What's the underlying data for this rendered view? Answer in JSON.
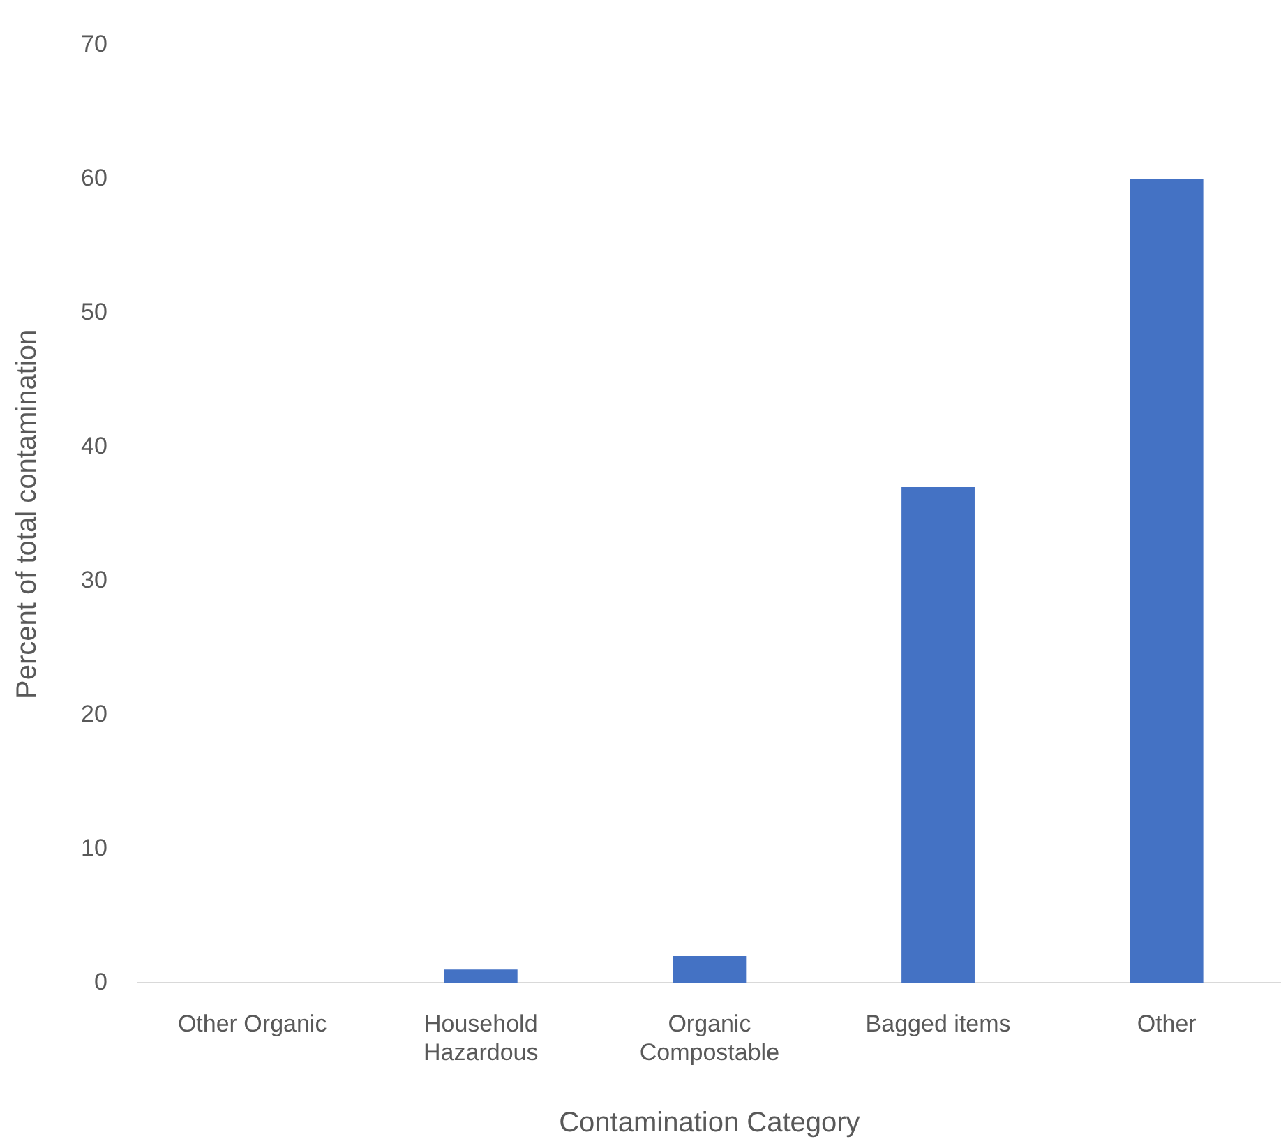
{
  "chart_data": {
    "type": "bar",
    "xlabel": "Contamination Category",
    "ylabel": "Percent of total contamination",
    "categories": [
      "Other Organic",
      "Household Hazardous",
      "Organic Compostable",
      "Bagged items",
      "Other"
    ],
    "values": [
      0,
      1,
      2,
      37,
      60
    ],
    "color": "#4472c4",
    "ylim": [
      0,
      70
    ],
    "yticks": [
      0,
      10,
      20,
      30,
      40,
      50,
      60,
      70
    ],
    "grid": false,
    "legend": false
  }
}
